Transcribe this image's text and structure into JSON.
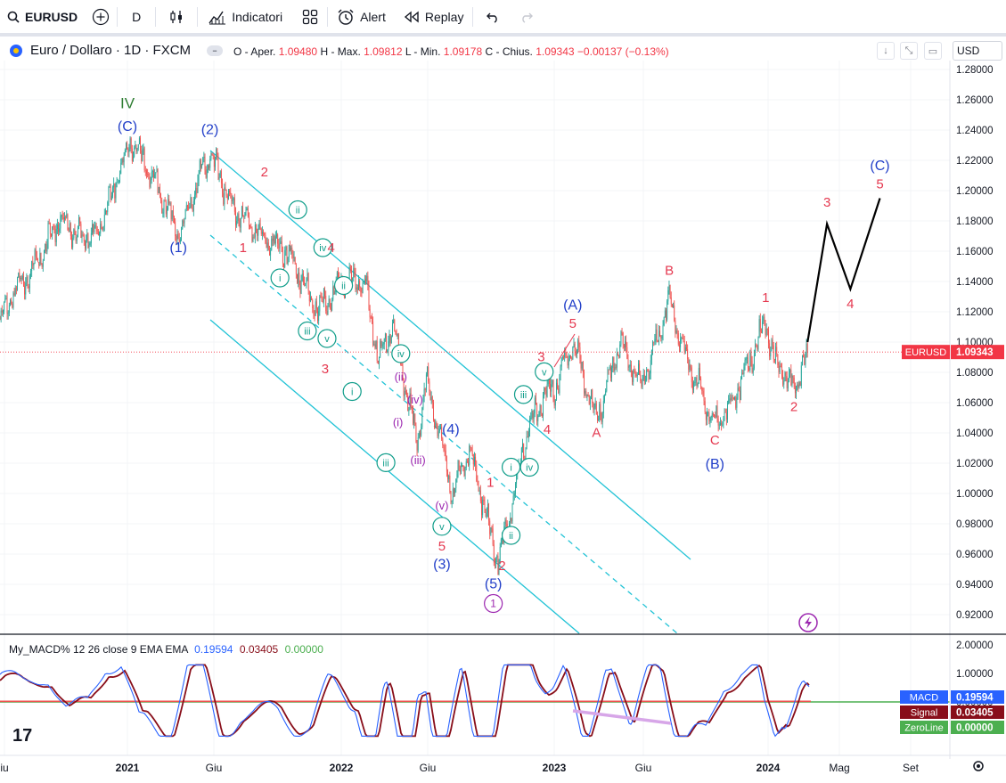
{
  "toolbar": {
    "symbol": "EURUSD",
    "interval": "D",
    "indicators_label": "Indicatori",
    "alert_label": "Alert",
    "replay_label": "Replay"
  },
  "legend": {
    "title": "Euro / Dollaro · 1D · FXCM",
    "open_label": "O - Aper.",
    "open": "1.09480",
    "high_label": "H - Max.",
    "high": "1.09812",
    "low_label": "L - Min.",
    "low": "1.09178",
    "close_label": "C - Chius.",
    "close": "1.09343",
    "change": "−0.00137 (−0.13%)"
  },
  "currency": "USD",
  "macd_legend": {
    "name": "My_MACD% 12 26 close 9 EMA EMA",
    "macd": "0.19594",
    "signal": "0.03405",
    "zero": "0.00000"
  },
  "colors": {
    "up": "#26a69a",
    "down": "#ef5350",
    "channel": "#22c3d6",
    "wave_blue": "#2962ff",
    "wave_red": "#e53950",
    "wave_green": "#0f9d8a",
    "wave_purple": "#9c27b0",
    "macd": "#2962ff",
    "signal": "#880e1a",
    "zero": "#4caf50"
  },
  "chart_data": {
    "type": "line",
    "title": "Euro / Dollaro · 1D · FXCM",
    "ylim": [
      0.91,
      1.28
    ],
    "y_ticks": [
      "1.28000",
      "1.26000",
      "1.24000",
      "1.22000",
      "1.20000",
      "1.18000",
      "1.16000",
      "1.14000",
      "1.12000",
      "1.10000",
      "1.08000",
      "1.06000",
      "1.04000",
      "1.02000",
      "1.00000",
      "0.98000",
      "0.96000",
      "0.94000",
      "0.92000"
    ],
    "x_ticks": [
      "iu",
      "2021",
      "Giu",
      "2022",
      "Giu",
      "2023",
      "Giu",
      "2024",
      "Mag",
      "Set"
    ],
    "price_label": {
      "name": "EURUSD",
      "value": "1.09343"
    },
    "macd_ticks": [
      "2.00000",
      "1.00000",
      "0.00000"
    ],
    "macd_labels": [
      {
        "name": "MACD",
        "value": "0.19594"
      },
      {
        "name": "Signal",
        "value": "0.03405"
      },
      {
        "name": "ZeroLine",
        "value": "0.00000"
      }
    ],
    "series": [
      {
        "name": "EURUSD",
        "x": [
          "2020-04-01",
          "2020-05-15",
          "2020-07-01",
          "2020-08-15",
          "2020-10-01",
          "2020-11-01",
          "2021-01-06",
          "2021-02-15",
          "2021-03-31",
          "2021-05-25",
          "2021-06-30",
          "2021-08-20",
          "2021-10-01",
          "2021-11-24",
          "2022-01-01",
          "2022-02-10",
          "2022-03-07",
          "2022-04-01",
          "2022-05-13",
          "2022-05-30",
          "2022-07-14",
          "2022-08-10",
          "2022-09-28",
          "2022-10-20",
          "2022-11-15",
          "2022-12-15",
          "2023-01-01",
          "2023-02-02",
          "2023-03-15",
          "2023-04-26",
          "2023-05-31",
          "2023-07-18",
          "2023-08-15",
          "2023-10-03",
          "2023-11-01",
          "2023-12-28",
          "2024-01-10",
          "2024-02-14",
          "2024-03-08"
        ],
        "y": [
          1.1,
          1.13,
          1.15,
          1.18,
          1.17,
          1.17,
          1.233,
          1.21,
          1.17,
          1.226,
          1.19,
          1.17,
          1.16,
          1.12,
          1.14,
          1.14,
          1.09,
          1.11,
          1.035,
          1.075,
          1.0,
          1.03,
          0.955,
          0.99,
          1.04,
          1.065,
          1.07,
          1.1,
          1.05,
          1.1,
          1.07,
          1.127,
          1.09,
          1.045,
          1.06,
          1.113,
          1.09,
          1.069,
          1.093
        ]
      },
      {
        "name": "projection",
        "x": [
          "2024-03-08",
          "2024-04-10",
          "2024-05-20",
          "2024-07-10"
        ],
        "y": [
          1.1,
          1.178,
          1.135,
          1.195
        ]
      }
    ],
    "annotations": [
      {
        "label": "IV",
        "x": "2021-01-01",
        "y": 1.255
      },
      {
        "label": "(C)",
        "x": "2021-01-01",
        "y": 1.24
      },
      {
        "label": "(2)",
        "x": "2021-05-25",
        "y": 1.238
      },
      {
        "label": "(1)",
        "x": "2021-03-31",
        "y": 1.16
      },
      {
        "label": "2",
        "x": "2021-08-25",
        "y": 1.21
      },
      {
        "label": "1",
        "x": "2021-07-20",
        "y": 1.16
      },
      {
        "label": "ii",
        "x": "2021-10-20",
        "y": 1.185
      },
      {
        "label": "iv",
        "x": "2021-12-01",
        "y": 1.16
      },
      {
        "label": "4",
        "x": "2021-12-15",
        "y": 1.16
      },
      {
        "label": "i",
        "x": "2021-09-20",
        "y": 1.14
      },
      {
        "label": "ii",
        "x": "2022-01-05",
        "y": 1.135
      },
      {
        "label": "iii",
        "x": "2021-11-05",
        "y": 1.105
      },
      {
        "label": "v",
        "x": "2021-12-08",
        "y": 1.1
      },
      {
        "label": "3",
        "x": "2021-12-05",
        "y": 1.08
      },
      {
        "label": "i",
        "x": "2022-01-20",
        "y": 1.065
      },
      {
        "label": "iv",
        "x": "2022-04-15",
        "y": 1.09
      },
      {
        "label": "(ii)",
        "x": "2022-04-15",
        "y": 1.075
      },
      {
        "label": "(iv)",
        "x": "2022-05-10",
        "y": 1.06
      },
      {
        "label": "(i)",
        "x": "2022-04-10",
        "y": 1.045
      },
      {
        "label": "iii",
        "x": "2022-03-20",
        "y": 1.018
      },
      {
        "label": "(iii)",
        "x": "2022-05-15",
        "y": 1.02
      },
      {
        "label": "(4)",
        "x": "2022-07-10",
        "y": 1.04
      },
      {
        "label": "(v)",
        "x": "2022-06-25",
        "y": 0.99
      },
      {
        "label": "v",
        "x": "2022-06-25",
        "y": 0.976
      },
      {
        "label": "5",
        "x": "2022-06-25",
        "y": 0.963
      },
      {
        "label": "(3)",
        "x": "2022-06-25",
        "y": 0.951
      },
      {
        "label": "1",
        "x": "2022-09-15",
        "y": 1.005
      },
      {
        "label": "2",
        "x": "2022-10-05",
        "y": 0.95
      },
      {
        "label": "(5)",
        "x": "2022-09-20",
        "y": 0.938
      },
      {
        "label": "1",
        "x": "2022-09-20",
        "y": 0.925
      },
      {
        "label": "i",
        "x": "2022-10-20",
        "y": 1.015
      },
      {
        "label": "ii",
        "x": "2022-10-20",
        "y": 0.97
      },
      {
        "label": "iii",
        "x": "2022-11-10",
        "y": 1.063
      },
      {
        "label": "iv",
        "x": "2022-11-20",
        "y": 1.015
      },
      {
        "label": "v",
        "x": "2022-12-15",
        "y": 1.078
      },
      {
        "label": "3",
        "x": "2022-12-10",
        "y": 1.088
      },
      {
        "label": "4",
        "x": "2022-12-20",
        "y": 1.04
      },
      {
        "label": "5",
        "x": "2023-02-02",
        "y": 1.11
      },
      {
        "label": "(A)",
        "x": "2023-02-02",
        "y": 1.122
      },
      {
        "label": "A",
        "x": "2023-03-15",
        "y": 1.038
      },
      {
        "label": "B",
        "x": "2023-07-18",
        "y": 1.145
      },
      {
        "label": "C",
        "x": "2023-10-03",
        "y": 1.033
      },
      {
        "label": "(B)",
        "x": "2023-10-03",
        "y": 1.017
      },
      {
        "label": "1",
        "x": "2023-12-28",
        "y": 1.127
      },
      {
        "label": "2",
        "x": "2024-02-14",
        "y": 1.055
      },
      {
        "label": "3",
        "x": "2024-04-10",
        "y": 1.19
      },
      {
        "label": "4",
        "x": "2024-05-20",
        "y": 1.123
      },
      {
        "label": "5",
        "x": "2024-07-10",
        "y": 1.202
      },
      {
        "label": "(C)",
        "x": "2024-07-10",
        "y": 1.214
      }
    ]
  }
}
